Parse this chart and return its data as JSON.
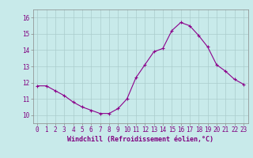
{
  "x": [
    0,
    1,
    2,
    3,
    4,
    5,
    6,
    7,
    8,
    9,
    10,
    11,
    12,
    13,
    14,
    15,
    16,
    17,
    18,
    19,
    20,
    21,
    22,
    23
  ],
  "y": [
    11.8,
    11.8,
    11.5,
    11.2,
    10.8,
    10.5,
    10.3,
    10.1,
    10.1,
    10.4,
    11.0,
    12.3,
    13.1,
    13.9,
    14.1,
    15.2,
    15.7,
    15.5,
    14.9,
    14.2,
    13.1,
    12.7,
    12.2,
    11.9
  ],
  "line_color": "#8B008B",
  "marker": "+",
  "marker_color": "#8B008B",
  "bg_color": "#c8eaea",
  "grid_color": "#aacccc",
  "xlabel": "Windchill (Refroidissement éolien,°C)",
  "xlim": [
    -0.5,
    23.5
  ],
  "ylim": [
    9.5,
    16.5
  ],
  "yticks": [
    10,
    11,
    12,
    13,
    14,
    15,
    16
  ],
  "xticks": [
    0,
    1,
    2,
    3,
    4,
    5,
    6,
    7,
    8,
    9,
    10,
    11,
    12,
    13,
    14,
    15,
    16,
    17,
    18,
    19,
    20,
    21,
    22,
    23
  ],
  "tick_label_color": "#800080",
  "xlabel_color": "#800080",
  "xlabel_fontsize": 6.0,
  "tick_fontsize": 5.5,
  "line_width": 0.8,
  "marker_size": 2.5
}
